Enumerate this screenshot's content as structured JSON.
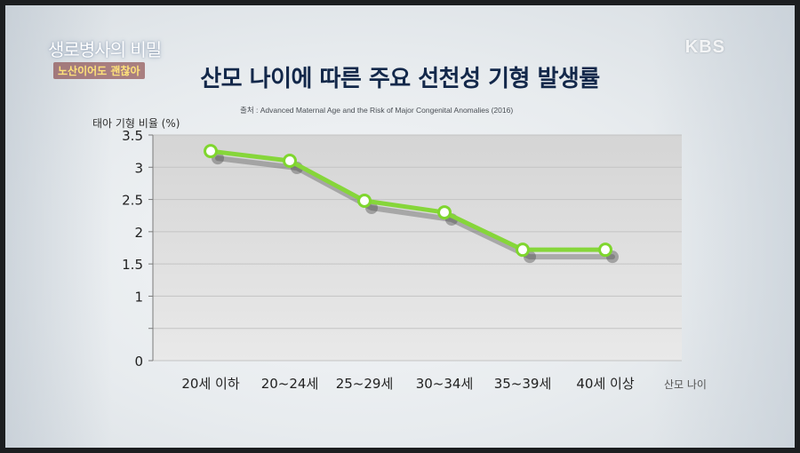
{
  "overlay": {
    "show_logo_line1": "생로병사의 비밀",
    "show_logo_line2": "노산이어도 괜찮아",
    "broadcaster": "KBS"
  },
  "colors": {
    "line": "#86d63a",
    "marker_stroke": "#7fd62e",
    "marker_fill": "#ffffff",
    "plot_bg": "#dcdcdc",
    "title": "#13284a"
  },
  "chart_data": {
    "type": "line",
    "title": "산모 나이에 따른 주요 선천성 기형 발생률",
    "subtitle": "출처 : Advanced Maternal Age and the Risk of Major Congenital Anomalies (2016)",
    "xlabel": "산모 나이",
    "ylabel": "태아 기형 비율 (%)",
    "categories": [
      "20세 이하",
      "20~24세",
      "25~29세",
      "30~34세",
      "35~39세",
      "40세 이상"
    ],
    "series": [
      {
        "values": [
          3.25,
          3.1,
          2.48,
          2.3,
          1.72,
          1.72
        ]
      }
    ],
    "ylim": [
      0,
      3.5
    ],
    "yticks": [
      0,
      0.5,
      1,
      1.5,
      2,
      2.5,
      3,
      3.5
    ],
    "ytick_labels": [
      "0",
      "",
      "1",
      "1.5",
      "2",
      "2.5",
      "3",
      "3.5"
    ],
    "grid": true,
    "legend": "none"
  }
}
